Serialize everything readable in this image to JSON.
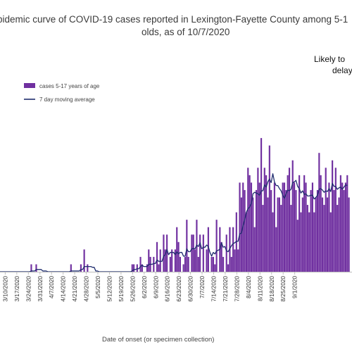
{
  "chart_data": {
    "type": "bar",
    "title_line1": "pidemic curve of COVID-19 cases reported in Lexington-Fayette County among 5-1",
    "title_line2": "olds, as of 10/7/2020",
    "annotation_line1": "Likely to",
    "annotation_line2": "delay",
    "xlabel": "Date of onset (or specimen collection)",
    "ylabel": "",
    "x_tick_labels": [
      "3/10/2020",
      "3/17/2020",
      "3/24/2020",
      "3/31/2020",
      "4/7/2020",
      "4/14/2020",
      "4/21/2020",
      "4/28/2020",
      "5/5/2020",
      "5/12/2020",
      "5/19/2020",
      "5/26/2020",
      "6/2/2020",
      "6/9/2020",
      "6/16/2020",
      "6/23/2020",
      "6/30/2020",
      "7/7/2020",
      "7/14/2020",
      "7/21/2020",
      "7/28/2020",
      "8/4/2020",
      "8/11/2020",
      "8/18/2020",
      "8/25/2020",
      "9/1/2020"
    ],
    "start_date": "3/6/2020",
    "ylim": [
      0,
      20
    ],
    "grid": false,
    "legend_position": "top-left",
    "colors": {
      "bars": "#7030a0",
      "moving_average": "#1f2d6e"
    },
    "series": [
      {
        "name": "cases 5-17 years of age",
        "type": "bar",
        "values": [
          0,
          0,
          0,
          0,
          0,
          0,
          0,
          0,
          0,
          0,
          0,
          0,
          0,
          0,
          0,
          0,
          0,
          0,
          0,
          0,
          0,
          1,
          0,
          0,
          1,
          0,
          0,
          0,
          0,
          0,
          0,
          0,
          0,
          0,
          0,
          0,
          0,
          0,
          0,
          0,
          0,
          0,
          0,
          0,
          0,
          1,
          0,
          0,
          0,
          0,
          0,
          1,
          0,
          3,
          0,
          1,
          0,
          0,
          0,
          0,
          0,
          0,
          0,
          0,
          0,
          0,
          0,
          0,
          0,
          0,
          0,
          0,
          0,
          0,
          0,
          0,
          0,
          0,
          0,
          0,
          0,
          0,
          1,
          1,
          0,
          1,
          0,
          2,
          1,
          0,
          0,
          1,
          3,
          2,
          0,
          2,
          0,
          4,
          1,
          3,
          0,
          5,
          3,
          5,
          0,
          2,
          3,
          0,
          3,
          6,
          4,
          2,
          0,
          1,
          2,
          7,
          2,
          0,
          5,
          5,
          3,
          7,
          2,
          5,
          0,
          5,
          0,
          3,
          6,
          0,
          2,
          2,
          1,
          7,
          0,
          6,
          4,
          2,
          0,
          5,
          1,
          6,
          2,
          6,
          3,
          8,
          3,
          12,
          10,
          12,
          11,
          8,
          14,
          13,
          12,
          10,
          6,
          11,
          14,
          12,
          18,
          9,
          14,
          13,
          10,
          17,
          11,
          8,
          12,
          6,
          10,
          10,
          9,
          12,
          12,
          11,
          13,
          14,
          9,
          15,
          12,
          11,
          7,
          13,
          8,
          10,
          13,
          12,
          9,
          8,
          11,
          12,
          8,
          10,
          11,
          16,
          13,
          10,
          9,
          14,
          10,
          12,
          8,
          15,
          11,
          14,
          9,
          10,
          13,
          12,
          11,
          12,
          13,
          10
        ]
      },
      {
        "name": "7 day moving average",
        "type": "line",
        "values": [
          0,
          0,
          0,
          0,
          0,
          0,
          0,
          0,
          0,
          0,
          0,
          0,
          0,
          0,
          0,
          0,
          0,
          0,
          0,
          0,
          0,
          0.1,
          0.1,
          0.1,
          0.3,
          0.3,
          0.3,
          0.3,
          0.1,
          0.1,
          0.1,
          0,
          0,
          0,
          0,
          0,
          0,
          0,
          0,
          0,
          0,
          0,
          0,
          0,
          0,
          0.1,
          0.1,
          0.1,
          0.1,
          0.1,
          0.1,
          0.3,
          0.3,
          0.7,
          0.7,
          0.7,
          0.7,
          0.7,
          0.6,
          0.6,
          0.1,
          0.1,
          0,
          0,
          0,
          0,
          0,
          0,
          0,
          0,
          0,
          0,
          0,
          0,
          0,
          0,
          0,
          0,
          0,
          0,
          0,
          0,
          0.1,
          0.3,
          0.3,
          0.4,
          0.4,
          0.7,
          0.9,
          0.7,
          0.7,
          0.7,
          1.0,
          1.0,
          1.0,
          1.1,
          1.1,
          1.6,
          1.4,
          1.4,
          1.4,
          2.1,
          2.3,
          3.0,
          2.3,
          2.6,
          2.6,
          2.6,
          2.3,
          2.7,
          2.4,
          2.6,
          2.6,
          2.1,
          2.1,
          3.1,
          2.7,
          2.7,
          3.1,
          3.1,
          3.1,
          3.6,
          3.4,
          3.9,
          3.1,
          3.3,
          3.3,
          3.6,
          3.4,
          2.6,
          2.1,
          2.6,
          2.4,
          2.8,
          2.9,
          3.0,
          3.9,
          3.3,
          3.4,
          2.8,
          2.7,
          3.1,
          3.5,
          3.8,
          3.9,
          4.1,
          4.1,
          5.1,
          5.2,
          6.2,
          7.0,
          8.0,
          8.5,
          8.7,
          9.2,
          10.5,
          10.7,
          10.6,
          10.5,
          10.3,
          10.9,
          10.9,
          11.7,
          11.4,
          12.1,
          12.5,
          12.0,
          13.2,
          12.1,
          11.6,
          11.6,
          11.2,
          10.9,
          10.3,
          9.9,
          10.5,
          11.0,
          10.9,
          11.1,
          12.0,
          12.1,
          12.3,
          11.5,
          11.2,
          10.6,
          10.9,
          10.4,
          10.5,
          10.2,
          10.2,
          10.3,
          10.3,
          9.8,
          10.0,
          10.3,
          11.1,
          11.2,
          11.0,
          10.7,
          10.9,
          10.8,
          11.2,
          10.8,
          11.9,
          11.5,
          11.5,
          11.1,
          11.3,
          11.4,
          11.1,
          11.4,
          11.7,
          11.6
        ]
      }
    ]
  }
}
